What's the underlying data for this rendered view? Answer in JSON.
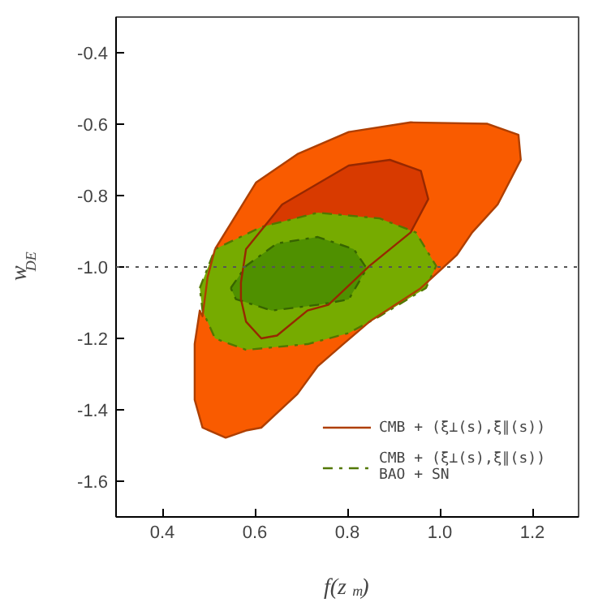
{
  "chart_data": {
    "type": "area",
    "xlabel": "f(z$_{m}$)",
    "ylabel": "w$_{DE}$",
    "xlim": [
      0.3,
      1.3
    ],
    "ylim": [
      -1.7,
      -0.3
    ],
    "xticks": [
      0.4,
      0.6,
      0.8,
      {
        "value": 1.0,
        "label": "1.0"
      },
      1.2
    ],
    "yticks": [
      -1.6,
      -1.4,
      -1.2,
      {
        "value": -1.0,
        "label": "-1.0"
      },
      -0.8,
      -0.6,
      -0.4
    ],
    "grid": false,
    "legend": "bottom right",
    "ref_lines": [
      {
        "axis": "y",
        "value": -1.0,
        "color": "#555555",
        "line_style": "dotted"
      }
    ],
    "series": [
      {
        "name": "CMB + (ξ⊥(s),ξ∥(s))",
        "color": "#f95b00",
        "line_style": "solid",
        "x": [
          0.514,
          0.603,
          0.692,
          0.803,
          0.937,
          1.103,
          1.17,
          1.175,
          1.125,
          1.07,
          1.037,
          0.958,
          0.848,
          0.792,
          0.736,
          0.692,
          0.614,
          0.581,
          0.537,
          0.487,
          0.47,
          0.47,
          0.481,
          0.487,
          0.498
        ],
        "values": [
          -0.95,
          -0.763,
          -0.684,
          -0.622,
          -0.595,
          -0.599,
          -0.63,
          -0.7,
          -0.825,
          -0.903,
          -0.966,
          -1.06,
          -1.153,
          -1.215,
          -1.278,
          -1.356,
          -1.45,
          -1.458,
          -1.478,
          -1.45,
          -1.372,
          -1.216,
          -1.122,
          -1.138,
          -1.028
        ]
      },
      {
        "color": "#d83a00",
        "line_style": "solid",
        "x": [
          0.57,
          0.581,
          0.659,
          0.803,
          0.892,
          0.959,
          0.975,
          0.937,
          0.848,
          0.759,
          0.714,
          0.648,
          0.614,
          0.581,
          0.57
        ],
        "values": [
          -1.044,
          -0.95,
          -0.825,
          -0.716,
          -0.7,
          -0.731,
          -0.81,
          -0.903,
          -0.997,
          -1.106,
          -1.122,
          -1.192,
          -1.2,
          -1.153,
          -1.09
        ]
      },
      {
        "name": "CMB + (ξ⊥(s),ξ∥(s))\nBAO + SN",
        "color": "#76ab00",
        "line_style": "dashed",
        "x": [
          0.481,
          0.514,
          0.614,
          0.736,
          0.87,
          0.948,
          0.992,
          0.97,
          0.87,
          0.803,
          0.714,
          0.581,
          0.514,
          0.487
        ],
        "values": [
          -1.059,
          -0.95,
          -0.888,
          -0.848,
          -0.864,
          -0.903,
          -0.997,
          -1.059,
          -1.138,
          -1.185,
          -1.216,
          -1.232,
          -1.2,
          -1.122
        ]
      },
      {
        "color": "#4f9000",
        "line_style": "dashed",
        "x": [
          0.548,
          0.581,
          0.648,
          0.736,
          0.814,
          0.842,
          0.803,
          0.736,
          0.637,
          0.559
        ],
        "values": [
          -1.059,
          -0.997,
          -0.934,
          -0.916,
          -0.95,
          -1.004,
          -1.091,
          -1.106,
          -1.122,
          -1.09
        ]
      }
    ]
  }
}
